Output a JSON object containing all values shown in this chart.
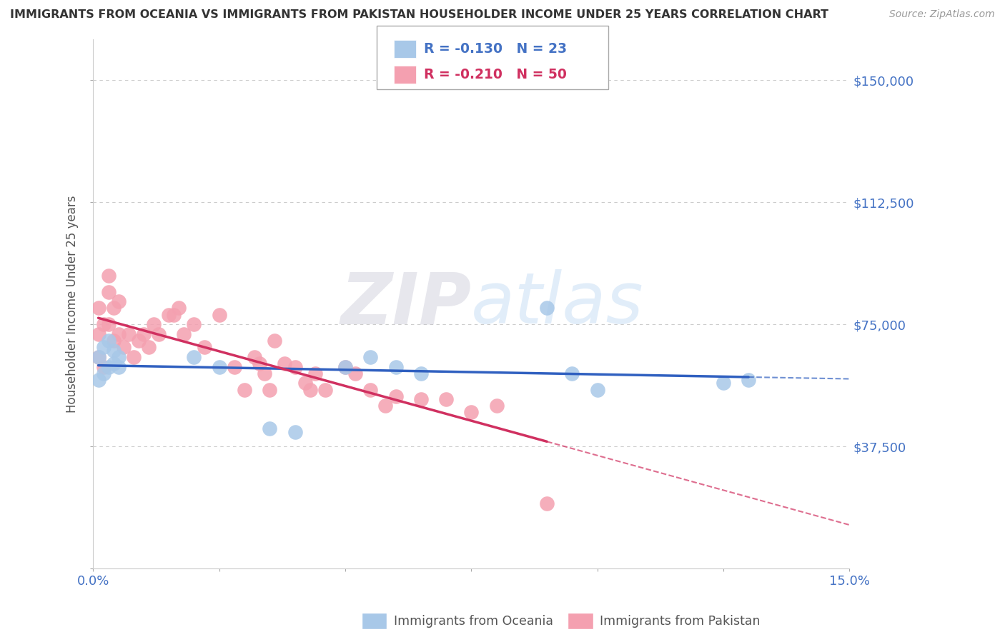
{
  "title": "IMMIGRANTS FROM OCEANIA VS IMMIGRANTS FROM PAKISTAN HOUSEHOLDER INCOME UNDER 25 YEARS CORRELATION CHART",
  "source": "Source: ZipAtlas.com",
  "ylabel": "Householder Income Under 25 years",
  "xlim": [
    0.0,
    0.15
  ],
  "ylim": [
    0,
    162500
  ],
  "yticks": [
    0,
    37500,
    75000,
    112500,
    150000
  ],
  "ytick_labels": [
    "",
    "$37,500",
    "$75,000",
    "$112,500",
    "$150,000"
  ],
  "xticks": [
    0.0,
    0.025,
    0.05,
    0.075,
    0.1,
    0.125,
    0.15
  ],
  "xtick_labels": [
    "0.0%",
    "",
    "",
    "",
    "",
    "",
    "15.0%"
  ],
  "oceania_R": -0.13,
  "oceania_N": 23,
  "pakistan_R": -0.21,
  "pakistan_N": 50,
  "oceania_color": "#A8C8E8",
  "pakistan_color": "#F4A0B0",
  "oceania_line_color": "#3060C0",
  "pakistan_line_color": "#D03060",
  "background_color": "#FFFFFF",
  "watermark": "ZIPatlas",
  "oceania_x": [
    0.001,
    0.001,
    0.002,
    0.002,
    0.003,
    0.003,
    0.004,
    0.004,
    0.005,
    0.005,
    0.02,
    0.025,
    0.035,
    0.04,
    0.05,
    0.055,
    0.06,
    0.065,
    0.09,
    0.095,
    0.1,
    0.125,
    0.13
  ],
  "oceania_y": [
    58000,
    65000,
    60000,
    68000,
    62000,
    70000,
    63000,
    67000,
    65000,
    62000,
    65000,
    62000,
    43000,
    42000,
    62000,
    65000,
    62000,
    60000,
    80000,
    60000,
    55000,
    57000,
    58000
  ],
  "pakistan_x": [
    0.001,
    0.001,
    0.001,
    0.002,
    0.002,
    0.003,
    0.003,
    0.003,
    0.004,
    0.004,
    0.005,
    0.005,
    0.006,
    0.007,
    0.008,
    0.009,
    0.01,
    0.011,
    0.012,
    0.013,
    0.015,
    0.016,
    0.017,
    0.018,
    0.02,
    0.022,
    0.025,
    0.028,
    0.03,
    0.032,
    0.033,
    0.034,
    0.035,
    0.036,
    0.038,
    0.04,
    0.042,
    0.043,
    0.044,
    0.046,
    0.05,
    0.052,
    0.055,
    0.058,
    0.06,
    0.065,
    0.07,
    0.075,
    0.08,
    0.09
  ],
  "pakistan_y": [
    65000,
    72000,
    80000,
    62000,
    75000,
    75000,
    85000,
    90000,
    80000,
    70000,
    82000,
    72000,
    68000,
    72000,
    65000,
    70000,
    72000,
    68000,
    75000,
    72000,
    78000,
    78000,
    80000,
    72000,
    75000,
    68000,
    78000,
    62000,
    55000,
    65000,
    63000,
    60000,
    55000,
    70000,
    63000,
    62000,
    57000,
    55000,
    60000,
    55000,
    62000,
    60000,
    55000,
    50000,
    53000,
    52000,
    52000,
    48000,
    50000,
    20000
  ]
}
